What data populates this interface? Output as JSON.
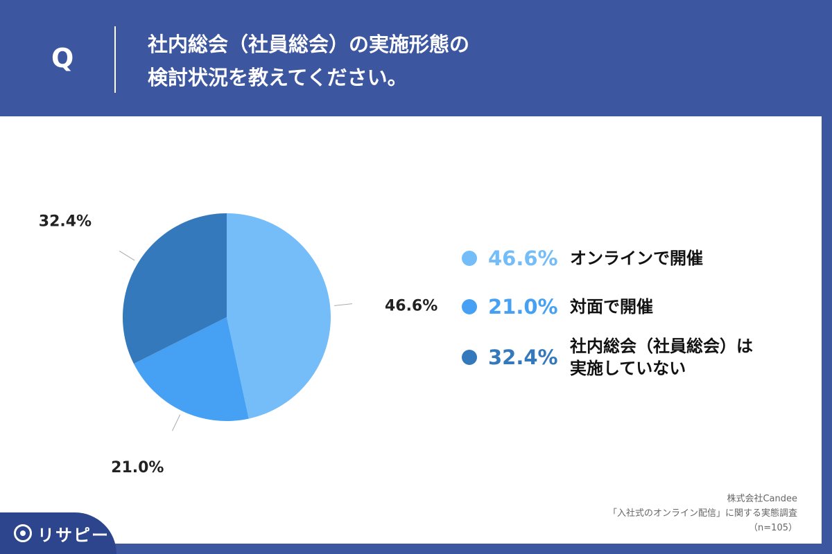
{
  "header": {
    "q_mark": "Q",
    "question_line1": "社内総会（社員総会）の実施形態の",
    "question_line2": "検討状況を教えてください。"
  },
  "chart_data": {
    "type": "pie",
    "title": "社内総会（社員総会）の実施形態の検討状況を教えてください。",
    "start_angle_deg": 0,
    "direction": "clockwise",
    "slices": [
      {
        "label": "オンラインで開催",
        "value": 46.6,
        "display": "46.6%",
        "color": "#74bdf8"
      },
      {
        "label": "対面で開催",
        "value": 21.0,
        "display": "21.0%",
        "color": "#46a1f4"
      },
      {
        "label": "社内総会（社員総会）は実施していない",
        "value": 32.4,
        "display": "32.4%",
        "color": "#3479bc"
      }
    ]
  },
  "legend": {
    "items": [
      {
        "pct": "46.6%",
        "label_lines": [
          "オンラインで開催"
        ],
        "color": "#74bdf8"
      },
      {
        "pct": "21.0%",
        "label_lines": [
          "対面で開催"
        ],
        "color": "#46a1f4"
      },
      {
        "pct": "32.4%",
        "label_lines": [
          "社内総会（社員総会）は",
          "実施していない"
        ],
        "color": "#3479bc"
      }
    ]
  },
  "source": {
    "company": "株式会社Candee",
    "survey": "「入社式のオンライン配信」に関する実態調査",
    "sample": "（n=105）"
  },
  "logo": {
    "text": "リサピー"
  }
}
